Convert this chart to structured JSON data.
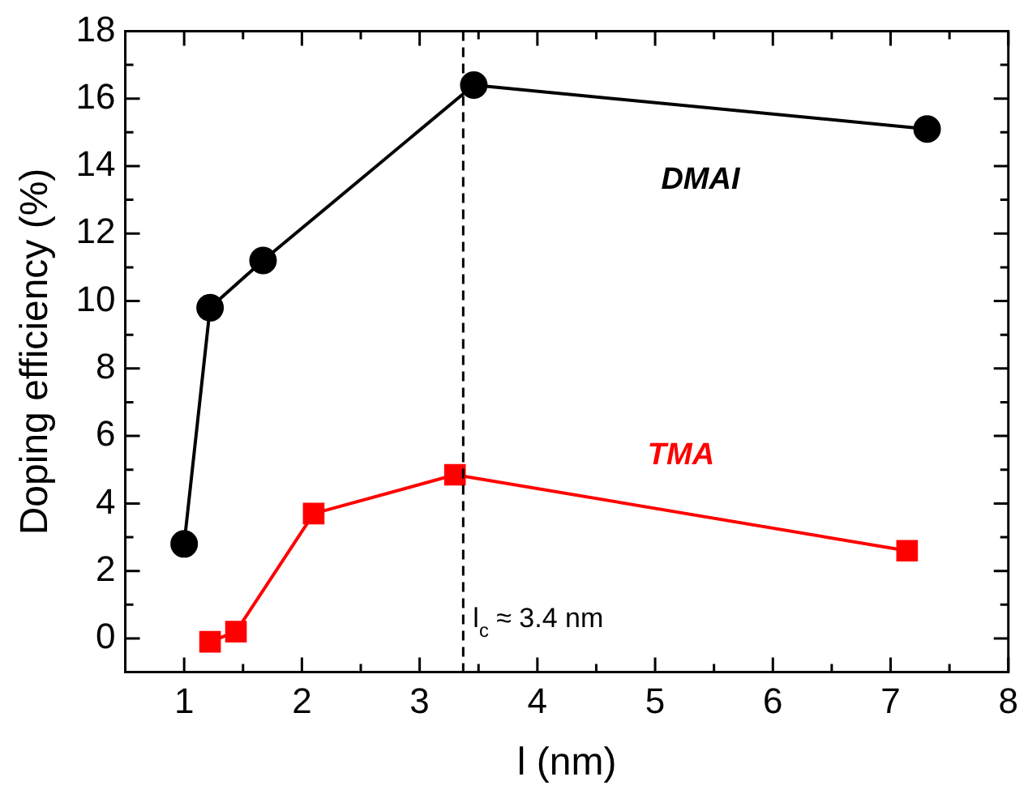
{
  "chart_data": {
    "type": "line",
    "xlabel": "l (nm)",
    "ylabel": "Doping efficiency (%)",
    "xlim": [
      0.5,
      8
    ],
    "xticks": [
      1,
      {
        "value": 1.5,
        "label": null
      },
      2,
      {
        "value": 2.5,
        "label": null
      },
      3,
      {
        "value": 3.5,
        "label": null
      },
      4,
      {
        "value": 4.5,
        "label": null
      },
      5,
      {
        "value": 5.5,
        "label": null
      },
      6,
      {
        "value": 6.5,
        "label": null
      },
      7,
      {
        "value": 7.5,
        "label": null
      },
      8
    ],
    "ylim": [
      -1,
      18
    ],
    "yticks": [
      0,
      {
        "value": 1,
        "label": null
      },
      2,
      {
        "value": 3,
        "label": null
      },
      4,
      {
        "value": 5,
        "label": null
      },
      6,
      {
        "value": 7,
        "label": null
      },
      8,
      {
        "value": 9,
        "label": null
      },
      10,
      {
        "value": 11,
        "label": null
      },
      12,
      {
        "value": 13,
        "label": null
      },
      14,
      {
        "value": 15,
        "label": null
      },
      16,
      {
        "value": 17,
        "label": null
      },
      18
    ],
    "grid": false,
    "legend": false,
    "line_style": "solid",
    "series": [
      {
        "name": "DMAI",
        "color": "#000000",
        "marker": "circle",
        "x": [
          1.0,
          1.22,
          1.67,
          3.46,
          7.31
        ],
        "values": [
          2.8,
          9.8,
          11.2,
          16.4,
          15.1
        ]
      },
      {
        "name": "TMA",
        "color": "#ff0000",
        "marker": "square",
        "x": [
          1.22,
          1.44,
          2.1,
          3.3,
          7.14
        ],
        "values": [
          -0.1,
          0.2,
          3.7,
          4.85,
          2.6
        ]
      }
    ],
    "ref_lines": [
      {
        "axis": "x",
        "value": 3.37,
        "label": "l$_{c}$ ≈ 3.4 nm",
        "color": "#000000",
        "line_style": "dashed"
      }
    ]
  }
}
